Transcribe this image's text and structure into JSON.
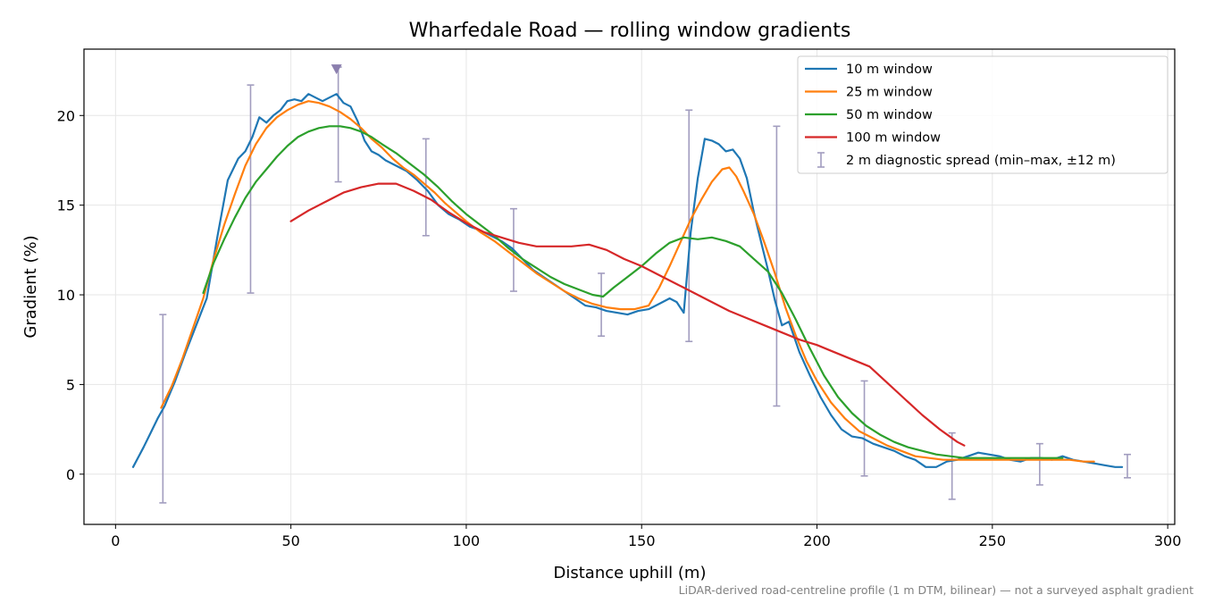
{
  "chart_data": {
    "type": "line",
    "title": "Wharfedale Road — rolling window gradients",
    "xlabel": "Distance uphill (m)",
    "ylabel": "Gradient (%)",
    "xlim": [
      -9,
      302
    ],
    "ylim": [
      -2.8,
      23.7
    ],
    "xticks": [
      0,
      50,
      100,
      150,
      200,
      250,
      300
    ],
    "yticks": [
      0,
      5,
      10,
      15,
      20
    ],
    "grid": true,
    "legend_position": "top-right",
    "series": [
      {
        "name": "10 m window",
        "color": "#1f77b4",
        "x": [
          5,
          8,
          10,
          12,
          14,
          17,
          20,
          23,
          26,
          29,
          32,
          35,
          37,
          39,
          41,
          43,
          45,
          47,
          49,
          51,
          53,
          55,
          57,
          59,
          61,
          63,
          65,
          67,
          69,
          71,
          73,
          75,
          77,
          80,
          83,
          86,
          89,
          92,
          95,
          98,
          101,
          104,
          107,
          110,
          113,
          116,
          119,
          122,
          125,
          128,
          131,
          134,
          137,
          140,
          143,
          146,
          149,
          152,
          155,
          158,
          160,
          162,
          164,
          166,
          168,
          170,
          172,
          174,
          176,
          178,
          180,
          182,
          184,
          186,
          188,
          190,
          192,
          195,
          198,
          201,
          204,
          207,
          210,
          213,
          216,
          219,
          222,
          225,
          228,
          231,
          234,
          237,
          240,
          243,
          246,
          249,
          252,
          255,
          258,
          261,
          264,
          267,
          270,
          273,
          276,
          279,
          282,
          285,
          287
        ],
        "y": [
          0.4,
          1.5,
          2.3,
          3.1,
          3.8,
          5.2,
          6.8,
          8.3,
          9.8,
          13.2,
          16.4,
          17.6,
          18.0,
          18.8,
          19.9,
          19.6,
          20.0,
          20.3,
          20.8,
          20.9,
          20.8,
          21.2,
          21.0,
          20.8,
          21.0,
          21.2,
          20.7,
          20.5,
          19.7,
          18.6,
          18.0,
          17.8,
          17.5,
          17.2,
          16.9,
          16.4,
          15.8,
          15.0,
          14.5,
          14.2,
          13.8,
          13.6,
          13.3,
          13.0,
          12.6,
          12.0,
          11.4,
          11.0,
          10.6,
          10.2,
          9.8,
          9.4,
          9.3,
          9.1,
          9.0,
          8.9,
          9.1,
          9.2,
          9.5,
          9.8,
          9.6,
          9.0,
          13.5,
          16.5,
          18.7,
          18.6,
          18.4,
          18.0,
          18.1,
          17.6,
          16.5,
          14.6,
          13.0,
          11.4,
          9.7,
          8.3,
          8.5,
          6.8,
          5.5,
          4.3,
          3.3,
          2.5,
          2.1,
          2.0,
          1.7,
          1.5,
          1.3,
          1.0,
          0.8,
          0.4,
          0.4,
          0.7,
          0.8,
          1.0,
          1.2,
          1.1,
          1.0,
          0.8,
          0.7,
          0.9,
          0.9,
          0.8,
          1.0,
          0.8,
          0.7,
          0.6,
          0.5,
          0.4,
          0.4
        ]
      },
      {
        "name": "25 m window",
        "color": "#ff7f0e",
        "x": [
          13,
          16,
          19,
          22,
          25,
          28,
          31,
          34,
          37,
          40,
          43,
          46,
          49,
          52,
          55,
          58,
          61,
          64,
          67,
          70,
          73,
          76,
          79,
          82,
          85,
          88,
          91,
          94,
          97,
          100,
          104,
          108,
          112,
          116,
          120,
          124,
          128,
          132,
          136,
          140,
          144,
          148,
          152,
          155,
          158,
          161,
          164,
          167,
          170,
          173,
          175,
          177,
          179,
          182,
          185,
          188,
          191,
          194,
          197,
          200,
          204,
          208,
          212,
          216,
          220,
          224,
          228,
          232,
          236,
          240,
          244,
          248,
          252,
          256,
          260,
          264,
          268,
          272,
          276,
          279
        ],
        "y": [
          3.7,
          4.9,
          6.4,
          8.1,
          9.8,
          12.0,
          13.9,
          15.6,
          17.2,
          18.4,
          19.3,
          19.9,
          20.3,
          20.6,
          20.8,
          20.7,
          20.5,
          20.2,
          19.8,
          19.3,
          18.7,
          18.2,
          17.6,
          17.1,
          16.7,
          16.2,
          15.7,
          15.1,
          14.6,
          14.1,
          13.5,
          13.0,
          12.4,
          11.8,
          11.2,
          10.7,
          10.2,
          9.8,
          9.5,
          9.3,
          9.2,
          9.2,
          9.4,
          10.4,
          11.6,
          12.9,
          14.2,
          15.3,
          16.3,
          17.0,
          17.1,
          16.6,
          15.8,
          14.5,
          12.9,
          11.2,
          9.3,
          7.7,
          6.3,
          5.2,
          4.0,
          3.1,
          2.4,
          2.0,
          1.6,
          1.3,
          1.0,
          0.9,
          0.8,
          0.8,
          0.8,
          0.8,
          0.8,
          0.8,
          0.8,
          0.8,
          0.8,
          0.8,
          0.7,
          0.7
        ]
      },
      {
        "name": "50 m window",
        "color": "#2ca02c",
        "x": [
          25,
          28,
          31,
          34,
          37,
          40,
          43,
          46,
          49,
          52,
          55,
          58,
          61,
          64,
          67,
          70,
          73,
          76,
          80,
          84,
          88,
          92,
          96,
          100,
          104,
          108,
          112,
          116,
          120,
          124,
          128,
          132,
          136,
          139,
          142,
          146,
          150,
          154,
          158,
          162,
          166,
          170,
          174,
          178,
          182,
          186,
          190,
          194,
          198,
          202,
          206,
          210,
          214,
          218,
          222,
          226,
          230,
          234,
          238,
          242,
          246,
          250,
          254,
          258,
          262,
          266,
          270
        ],
        "y": [
          10.1,
          11.8,
          13.1,
          14.3,
          15.4,
          16.3,
          17.0,
          17.7,
          18.3,
          18.8,
          19.1,
          19.3,
          19.4,
          19.4,
          19.3,
          19.1,
          18.8,
          18.4,
          17.9,
          17.3,
          16.7,
          16.0,
          15.2,
          14.5,
          13.9,
          13.3,
          12.6,
          12.0,
          11.5,
          11.0,
          10.6,
          10.3,
          10.0,
          9.9,
          10.4,
          11.0,
          11.6,
          12.3,
          12.9,
          13.2,
          13.1,
          13.2,
          13.0,
          12.7,
          12.0,
          11.3,
          10.1,
          8.6,
          7.0,
          5.5,
          4.3,
          3.4,
          2.7,
          2.2,
          1.8,
          1.5,
          1.3,
          1.1,
          1.0,
          0.9,
          0.9,
          0.9,
          0.9,
          0.9,
          0.9,
          0.9,
          0.9
        ]
      },
      {
        "name": "100 m window",
        "color": "#d62728",
        "x": [
          50,
          55,
          60,
          65,
          70,
          75,
          80,
          85,
          90,
          95,
          100,
          105,
          110,
          115,
          120,
          125,
          130,
          135,
          140,
          145,
          150,
          155,
          160,
          165,
          170,
          175,
          180,
          185,
          190,
          195,
          200,
          205,
          210,
          215,
          220,
          225,
          230,
          235,
          240,
          242
        ],
        "y": [
          14.1,
          14.7,
          15.2,
          15.7,
          16.0,
          16.2,
          16.2,
          15.8,
          15.3,
          14.6,
          14.0,
          13.5,
          13.2,
          12.9,
          12.7,
          12.7,
          12.7,
          12.8,
          12.5,
          12.0,
          11.6,
          11.1,
          10.6,
          10.1,
          9.6,
          9.1,
          8.7,
          8.3,
          7.9,
          7.5,
          7.2,
          6.8,
          6.4,
          6.0,
          5.1,
          4.2,
          3.3,
          2.5,
          1.8,
          1.6
        ]
      }
    ],
    "error_bars": {
      "name": "2 m diagnostic spread (min–max, ±12 m)",
      "color": "#a29dbf",
      "x": [
        13.5,
        38.5,
        63.5,
        88.5,
        113.5,
        138.5,
        163.5,
        188.5,
        213.5,
        238.5,
        263.5,
        288.5
      ],
      "y_min": [
        -1.6,
        10.1,
        16.3,
        13.3,
        10.2,
        7.7,
        7.4,
        3.8,
        -0.1,
        -1.4,
        -0.6,
        -0.2
      ],
      "y_max": [
        8.9,
        21.7,
        22.7,
        18.7,
        14.8,
        11.2,
        20.3,
        19.4,
        5.2,
        2.3,
        1.7,
        1.1
      ]
    },
    "marker": {
      "x": 63,
      "y": 22.6,
      "shape": "triangle-down",
      "color": "#8b7fae"
    },
    "legend_entries": [
      "10 m window",
      "25 m window",
      "50 m window",
      "100 m window",
      "2 m diagnostic spread (min–max, ±12 m)"
    ],
    "footnote": "LiDAR-derived road-centreline profile (1 m DTM, bilinear) — not a surveyed asphalt gradient"
  }
}
